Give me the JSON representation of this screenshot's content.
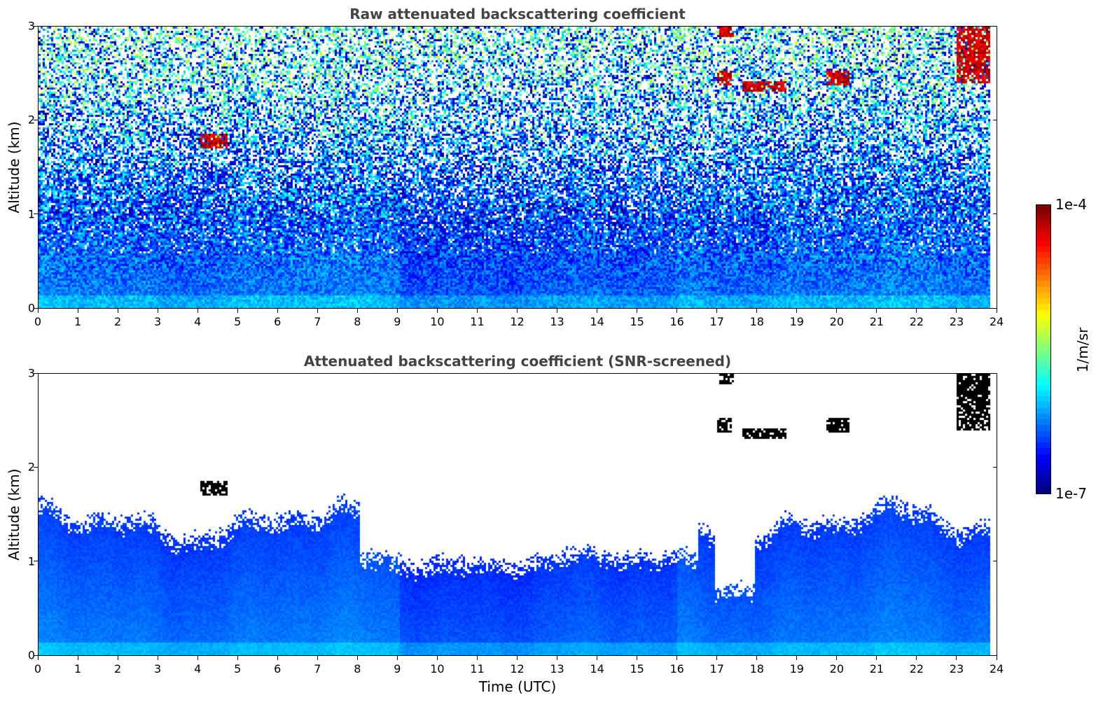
{
  "chart_data": [
    {
      "type": "heatmap",
      "title": "Raw attenuated backscattering coefficient",
      "xlabel": "",
      "ylabel": "Altitude (km)",
      "xlim": [
        0,
        24
      ],
      "ylim": [
        0,
        3
      ],
      "xticks": [
        "0",
        "1",
        "2",
        "3",
        "4",
        "5",
        "6",
        "7",
        "8",
        "9",
        "10",
        "11",
        "12",
        "13",
        "14",
        "15",
        "16",
        "17",
        "18",
        "19",
        "20",
        "21",
        "22",
        "23",
        "24"
      ],
      "yticks": [
        "0",
        "1",
        "2",
        "3"
      ],
      "color_scale": "log",
      "colorbar_range": [
        "1e-7",
        "1e-4"
      ],
      "features": [
        {
          "kind": "boundary_layer",
          "x": [
            0,
            23.8
          ],
          "y_top": 0.9
        },
        {
          "kind": "cloud",
          "x": [
            4.05,
            4.7
          ],
          "y": [
            1.72,
            1.88
          ]
        },
        {
          "kind": "cloud",
          "x": [
            16.95,
            17.35
          ],
          "y": [
            2.38,
            2.55
          ]
        },
        {
          "kind": "cloud",
          "x": [
            17.6,
            18.7
          ],
          "y": [
            2.32,
            2.42
          ]
        },
        {
          "kind": "cloud",
          "x": [
            19.7,
            20.3
          ],
          "y": [
            2.38,
            2.55
          ]
        },
        {
          "kind": "cloud",
          "x": [
            23.0,
            23.8
          ],
          "y": [
            2.4,
            3.0
          ]
        },
        {
          "kind": "cloud",
          "x": [
            17.05,
            17.4
          ],
          "y": [
            2.9,
            3.0
          ]
        }
      ]
    },
    {
      "type": "heatmap",
      "title": "Attenuated backscattering coefficient (SNR-screened)",
      "xlabel": "Time (UTC)",
      "ylabel": "Altitude (km)",
      "xlim": [
        0,
        24
      ],
      "ylim": [
        0,
        3
      ],
      "xticks": [
        "0",
        "1",
        "2",
        "3",
        "4",
        "5",
        "6",
        "7",
        "8",
        "9",
        "10",
        "11",
        "12",
        "13",
        "14",
        "15",
        "16",
        "17",
        "18",
        "19",
        "20",
        "21",
        "22",
        "23",
        "24"
      ],
      "yticks": [
        "0",
        "1",
        "2",
        "3"
      ],
      "color_scale": "log",
      "colorbar_range": [
        "1e-7",
        "1e-4"
      ],
      "features": [
        {
          "kind": "boundary_layer",
          "x": [
            0,
            23.8
          ],
          "y_top": 1.4
        },
        {
          "kind": "cloud",
          "x": [
            4.05,
            4.7
          ],
          "y": [
            1.72,
            1.88
          ]
        },
        {
          "kind": "cloud",
          "x": [
            16.95,
            17.35
          ],
          "y": [
            2.38,
            2.55
          ]
        },
        {
          "kind": "cloud",
          "x": [
            17.6,
            18.7
          ],
          "y": [
            2.32,
            2.42
          ]
        },
        {
          "kind": "cloud",
          "x": [
            19.7,
            20.3
          ],
          "y": [
            2.38,
            2.55
          ]
        },
        {
          "kind": "cloud",
          "x": [
            23.0,
            23.8
          ],
          "y": [
            2.4,
            3.0
          ]
        },
        {
          "kind": "cloud",
          "x": [
            17.05,
            17.4
          ],
          "y": [
            2.9,
            3.0
          ]
        }
      ]
    }
  ],
  "colorbar": {
    "max_label": "1e-4",
    "min_label": "1e-7",
    "unit": "1/m/sr",
    "colormap": "jet"
  }
}
